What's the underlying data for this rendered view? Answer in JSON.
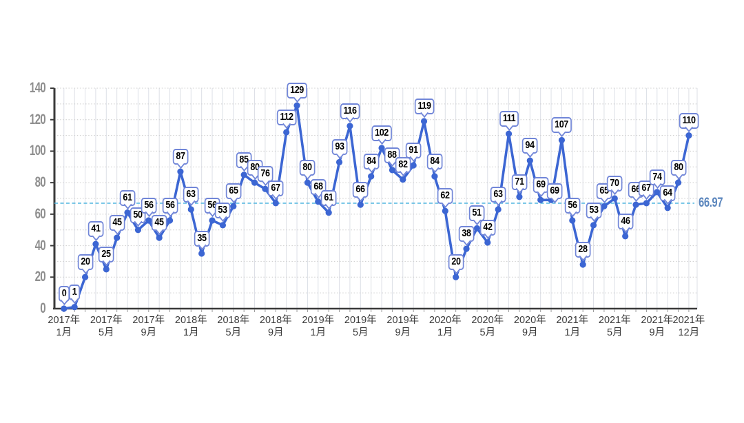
{
  "chart_data": {
    "type": "line",
    "title": "",
    "x_months": [
      "2017-01",
      "2017-02",
      "2017-03",
      "2017-04",
      "2017-05",
      "2017-06",
      "2017-07",
      "2017-08",
      "2017-09",
      "2017-10",
      "2017-11",
      "2017-12",
      "2018-01",
      "2018-02",
      "2018-03",
      "2018-04",
      "2018-05",
      "2018-06",
      "2018-07",
      "2018-08",
      "2018-09",
      "2018-10",
      "2018-11",
      "2018-12",
      "2019-01",
      "2019-02",
      "2019-03",
      "2019-04",
      "2019-05",
      "2019-06",
      "2019-07",
      "2019-08",
      "2019-09",
      "2019-10",
      "2019-11",
      "2019-12",
      "2020-01",
      "2020-02",
      "2020-03",
      "2020-04",
      "2020-05",
      "2020-06",
      "2020-07",
      "2020-08",
      "2020-09",
      "2020-10",
      "2020-11",
      "2020-12",
      "2021-01",
      "2021-02",
      "2021-03",
      "2021-04",
      "2021-05",
      "2021-06",
      "2021-07",
      "2021-08",
      "2021-09",
      "2021-10",
      "2021-11",
      "2021-12"
    ],
    "values": [
      0,
      1,
      20,
      41,
      25,
      45,
      61,
      50,
      56,
      45,
      56,
      87,
      63,
      35,
      56,
      53,
      65,
      85,
      80,
      76,
      67,
      112,
      129,
      80,
      68,
      61,
      93,
      116,
      66,
      84,
      102,
      88,
      82,
      91,
      119,
      84,
      62,
      20,
      38,
      51,
      42,
      63,
      111,
      71,
      94,
      69,
      69,
      107,
      56,
      28,
      53,
      65,
      70,
      46,
      66,
      67,
      74,
      64,
      80,
      110
    ],
    "y_ticks": [
      0,
      20,
      40,
      60,
      80,
      100,
      120,
      140
    ],
    "ylim": [
      0,
      140
    ],
    "x_tick_labels": [
      {
        "i": 0,
        "year": "2017年",
        "month": "1月"
      },
      {
        "i": 4,
        "year": "2017年",
        "month": "5月"
      },
      {
        "i": 8,
        "year": "2017年",
        "month": "9月"
      },
      {
        "i": 12,
        "year": "2018年",
        "month": "1月"
      },
      {
        "i": 16,
        "year": "2018年",
        "month": "5月"
      },
      {
        "i": 20,
        "year": "2018年",
        "month": "9月"
      },
      {
        "i": 24,
        "year": "2019年",
        "month": "1月"
      },
      {
        "i": 28,
        "year": "2019年",
        "month": "5月"
      },
      {
        "i": 32,
        "year": "2019年",
        "month": "9月"
      },
      {
        "i": 36,
        "year": "2020年",
        "month": "1月"
      },
      {
        "i": 40,
        "year": "2020年",
        "month": "5月"
      },
      {
        "i": 44,
        "year": "2020年",
        "month": "9月"
      },
      {
        "i": 48,
        "year": "2021年",
        "month": "1月"
      },
      {
        "i": 52,
        "year": "2021年",
        "month": "5月"
      },
      {
        "i": 56,
        "year": "2021年",
        "month": "9月"
      },
      {
        "i": 59,
        "year": "2021年",
        "month": "12月"
      }
    ],
    "average_line": {
      "value": 66.97,
      "label": "66.97"
    },
    "grid": {
      "vertical": "solid-every-month",
      "horizontal": "dotted-every-10"
    },
    "legend_position": "none",
    "colors": {
      "series": "#3c66d3",
      "point": "#3c66d3",
      "label_border": "#7186d8",
      "label_text": "#000000",
      "average_line": "#55b7e0",
      "average_label": "#5b86bd",
      "grid_vertical": "#dcdfe6",
      "grid_horizontal": "#cccccc",
      "axis": "#3a3a3a",
      "y_tick_label": "#8f8f8f",
      "x_tick_label": "#3b3b3b",
      "month_tick": "#9a9a9a"
    }
  }
}
